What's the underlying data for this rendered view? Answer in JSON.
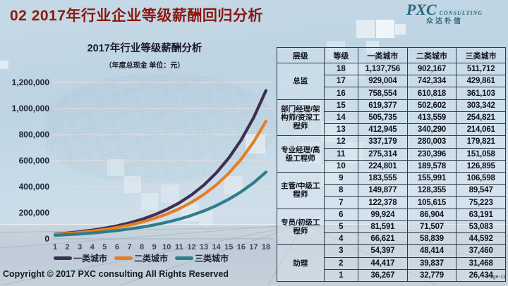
{
  "slide": {
    "title": "02 2017年行业企业等级薪酬回归分析",
    "title_color": "#8a1912",
    "footer": "Copyright © 2017 PXC consulting All Rights Reserved",
    "page_label": "Page-11"
  },
  "logo": {
    "brand": "PXC",
    "brand_suffix": "CONSULTING",
    "brand_cn": "众达朴信",
    "color": "#27687a"
  },
  "chart_data": {
    "type": "line",
    "title": "2017年行业等级薪酬分析",
    "subtitle": "（年度总现金 单位：元）",
    "xlabel": "",
    "ylabel": "",
    "x": [
      1,
      2,
      3,
      4,
      5,
      6,
      7,
      8,
      9,
      10,
      11,
      12,
      13,
      14,
      15,
      16,
      17,
      18
    ],
    "ylim": [
      0,
      1200000
    ],
    "yticks": [
      0,
      200000,
      400000,
      600000,
      800000,
      1000000,
      1200000
    ],
    "ytick_labels": [
      "0",
      "200,000",
      "400,000",
      "600,000",
      "800,000",
      "1,000,000",
      "1,200,000"
    ],
    "grid": true,
    "legend_position": "bottom",
    "series": [
      {
        "name": "一类城市",
        "color": "#3e2f52",
        "values": [
          36267,
          44417,
          54397,
          66621,
          81591,
          99924,
          122378,
          149877,
          183555,
          224801,
          275314,
          337179,
          412945,
          505735,
          619377,
          758554,
          929004,
          1137756
        ]
      },
      {
        "name": "二类城市",
        "color": "#e67e22",
        "values": [
          32779,
          39837,
          48414,
          58839,
          71507,
          86904,
          105615,
          128355,
          155991,
          189578,
          230396,
          280003,
          340290,
          413559,
          502602,
          610818,
          742334,
          902167
        ]
      },
      {
        "name": "三类城市",
        "color": "#2d7d8a",
        "values": [
          26434,
          31468,
          37460,
          44592,
          53083,
          63191,
          75223,
          89547,
          106598,
          126895,
          151058,
          179821,
          214061,
          254821,
          303342,
          361103,
          429861,
          511712
        ]
      }
    ]
  },
  "table": {
    "columns": [
      "层级",
      "等级",
      "一类城市",
      "二类城市",
      "三类城市"
    ],
    "groups": [
      {
        "level": "总监",
        "rows": [
          [
            "18",
            "1,137,756",
            "902,167",
            "511,712"
          ],
          [
            "17",
            "929,004",
            "742,334",
            "429,861"
          ],
          [
            "16",
            "758,554",
            "610,818",
            "361,103"
          ]
        ]
      },
      {
        "level": "部门经理/架构师/资深工程师",
        "rows": [
          [
            "15",
            "619,377",
            "502,602",
            "303,342"
          ],
          [
            "14",
            "505,735",
            "413,559",
            "254,821"
          ],
          [
            "13",
            "412,945",
            "340,290",
            "214,061"
          ]
        ]
      },
      {
        "level": "专业经理/高级工程师",
        "rows": [
          [
            "12",
            "337,179",
            "280,003",
            "179,821"
          ],
          [
            "11",
            "275,314",
            "230,396",
            "151,058"
          ],
          [
            "10",
            "224,801",
            "189,578",
            "126,895"
          ]
        ]
      },
      {
        "level": "主管/中级工程师",
        "rows": [
          [
            "9",
            "183,555",
            "155,991",
            "106,598"
          ],
          [
            "8",
            "149,877",
            "128,355",
            "89,547"
          ],
          [
            "7",
            "122,378",
            "105,615",
            "75,223"
          ]
        ]
      },
      {
        "level": "专员/初级工程师",
        "rows": [
          [
            "6",
            "99,924",
            "86,904",
            "63,191"
          ],
          [
            "5",
            "81,591",
            "71,507",
            "53,083"
          ],
          [
            "4",
            "66,621",
            "58,839",
            "44,592"
          ]
        ]
      },
      {
        "level": "助理",
        "rows": [
          [
            "3",
            "54,397",
            "48,414",
            "37,460"
          ],
          [
            "2",
            "44,417",
            "39,837",
            "31,468"
          ],
          [
            "1",
            "36,267",
            "32,779",
            "26,434"
          ]
        ]
      }
    ]
  }
}
